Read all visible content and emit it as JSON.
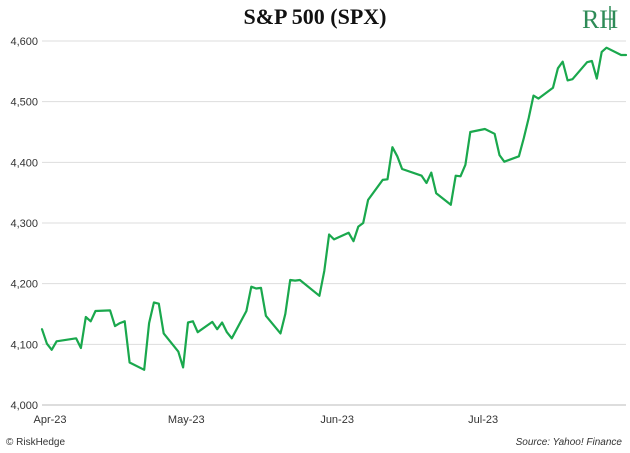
{
  "colors": {
    "line": "#1aa84d",
    "grid": "#dddddd",
    "logo": "#2e8b57"
  },
  "footer": {
    "left": "© RiskHedge",
    "right": "Source: Yahoo! Finance"
  },
  "logo": {
    "text": "RH"
  },
  "chart_data": {
    "type": "line",
    "title": "S&P 500 (SPX)",
    "xlabel": "",
    "ylabel": "",
    "ylim": [
      4000,
      4600
    ],
    "yticks": [
      4000,
      4100,
      4200,
      4300,
      4400,
      4500,
      4600
    ],
    "ytick_labels": [
      "4,000",
      "4,100",
      "4,200",
      "4,300",
      "4,400",
      "4,500",
      "4,600"
    ],
    "xlim": [
      "2023-04-03",
      "2023-08-01"
    ],
    "xticks": [
      "2023-04-03",
      "2023-05-01",
      "2023-06-01",
      "2023-07-01"
    ],
    "xtick_labels": [
      "Apr-23",
      "May-23",
      "Jun-23",
      "Jul-23"
    ],
    "grid": "horizontal",
    "series": [
      {
        "x": [
          "2023-04-03",
          "2023-04-04",
          "2023-04-05",
          "2023-04-06",
          "2023-04-10",
          "2023-04-11",
          "2023-04-12",
          "2023-04-13",
          "2023-04-14",
          "2023-04-17",
          "2023-04-18",
          "2023-04-19",
          "2023-04-20",
          "2023-04-21",
          "2023-04-24",
          "2023-04-25",
          "2023-04-26",
          "2023-04-27",
          "2023-04-28",
          "2023-05-01",
          "2023-05-02",
          "2023-05-03",
          "2023-05-04",
          "2023-05-05",
          "2023-05-08",
          "2023-05-09",
          "2023-05-10",
          "2023-05-11",
          "2023-05-12",
          "2023-05-15",
          "2023-05-16",
          "2023-05-17",
          "2023-05-18",
          "2023-05-19",
          "2023-05-22",
          "2023-05-23",
          "2023-05-24",
          "2023-05-25",
          "2023-05-26",
          "2023-05-30",
          "2023-05-31",
          "2023-06-01",
          "2023-06-02",
          "2023-06-05",
          "2023-06-06",
          "2023-06-07",
          "2023-06-08",
          "2023-06-09",
          "2023-06-12",
          "2023-06-13",
          "2023-06-14",
          "2023-06-15",
          "2023-06-16",
          "2023-06-20",
          "2023-06-21",
          "2023-06-22",
          "2023-06-23",
          "2023-06-26",
          "2023-06-27",
          "2023-06-28",
          "2023-06-29",
          "2023-06-30",
          "2023-07-03",
          "2023-07-05",
          "2023-07-06",
          "2023-07-07",
          "2023-07-10",
          "2023-07-11",
          "2023-07-12",
          "2023-07-13",
          "2023-07-14",
          "2023-07-17",
          "2023-07-18",
          "2023-07-19",
          "2023-07-20",
          "2023-07-21",
          "2023-07-24",
          "2023-07-25",
          "2023-07-26",
          "2023-07-27",
          "2023-07-28",
          "2023-07-31",
          "2023-08-01"
        ],
        "y": [
          4125,
          4101,
          4091,
          4105,
          4110,
          4094,
          4145,
          4138,
          4155,
          4156,
          4130,
          4135,
          4138,
          4070,
          4058,
          4135,
          4169,
          4167,
          4118,
          4088,
          4062,
          4136,
          4138,
          4120,
          4137,
          4125,
          4136,
          4120,
          4110,
          4155,
          4195,
          4192,
          4193,
          4147,
          4118,
          4150,
          4206,
          4205,
          4206,
          4180,
          4221,
          4281,
          4273,
          4284,
          4270,
          4294,
          4300,
          4338,
          4371,
          4372,
          4425,
          4410,
          4389,
          4378,
          4366,
          4383,
          4349,
          4330,
          4378,
          4377,
          4396,
          4450,
          4455,
          4447,
          4412,
          4401,
          4410,
          4440,
          4473,
          4510,
          4505,
          4523,
          4555,
          4566,
          4535,
          4537,
          4565,
          4567,
          4538,
          4582,
          4589,
          4577,
          4577
        ]
      }
    ]
  }
}
